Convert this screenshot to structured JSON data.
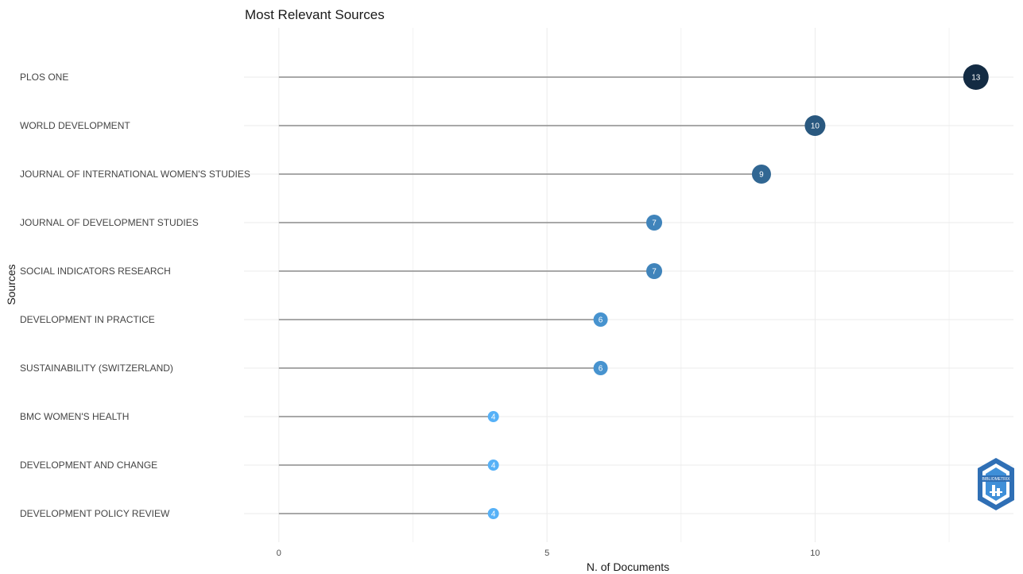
{
  "chart_data": {
    "type": "lollipop",
    "title": "Most Relevant Sources",
    "xlabel": "N. of Documents",
    "ylabel": "Sources",
    "xlim": [
      -0.65,
      13.7
    ],
    "x_ticks": [
      0,
      5,
      10
    ],
    "grid": true,
    "categories": [
      "PLOS ONE",
      "WORLD DEVELOPMENT",
      "JOURNAL OF INTERNATIONAL WOMEN'S STUDIES",
      "JOURNAL OF DEVELOPMENT STUDIES",
      "SOCIAL INDICATORS RESEARCH",
      "DEVELOPMENT IN PRACTICE",
      "SUSTAINABILITY (SWITZERLAND)",
      "BMC WOMEN'S HEALTH",
      "DEVELOPMENT AND CHANGE",
      "DEVELOPMENT POLICY REVIEW"
    ],
    "values": [
      13,
      10,
      9,
      7,
      7,
      6,
      6,
      4,
      4,
      4
    ],
    "color_low": "#56b1f7",
    "color_high": "#132b43",
    "stem_color": "#8c8c8c"
  },
  "logo": {
    "text": "BIBLIOMETRIX",
    "icon": "bibliometrix-logo-icon"
  }
}
